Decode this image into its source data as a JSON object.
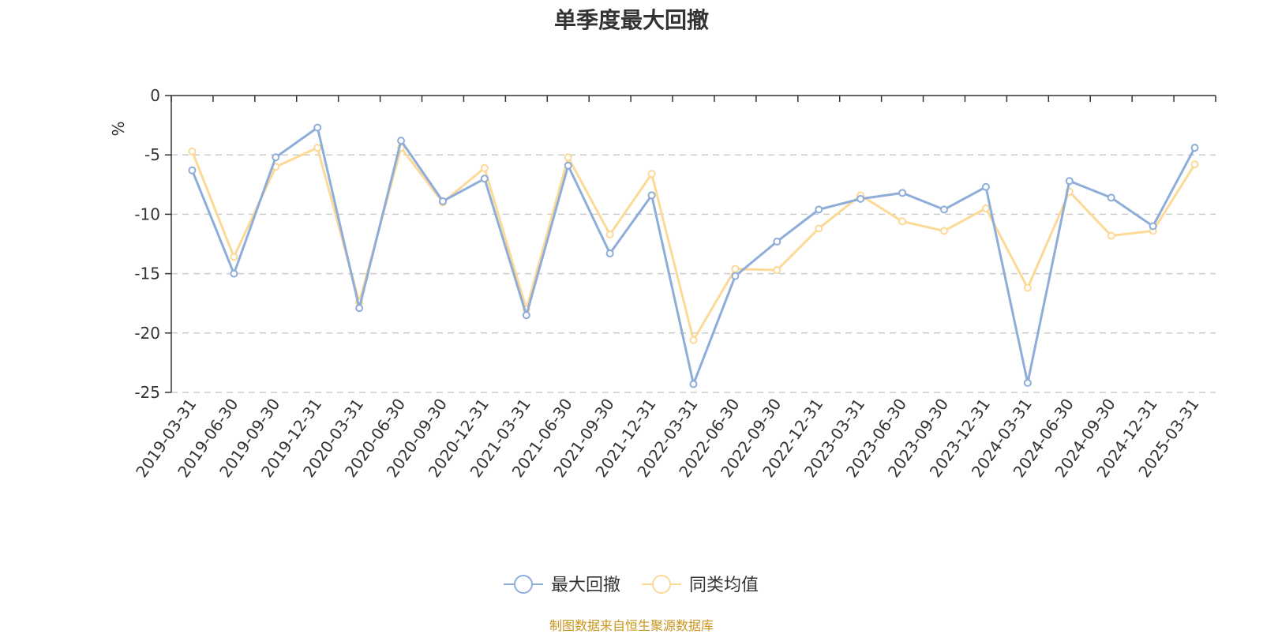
{
  "title": "单季度最大回撤",
  "y_unit": "%",
  "source_text": "制图数据来自恒生聚源数据库",
  "colors": {
    "series_1": "#8eadd9",
    "series_2": "#fcd997",
    "unit": "#ff0000",
    "source": "#c8961e",
    "grid": "#cccccc",
    "axis": "#333333"
  },
  "chart_data": {
    "type": "line",
    "title": "单季度最大回撤",
    "ylabel": "%",
    "xlabel": "",
    "ylim": [
      -25,
      0
    ],
    "yticks": [
      0,
      -5,
      -10,
      -15,
      -20,
      -25
    ],
    "grid": "horizontal-dashed",
    "legend_position": "bottom-center",
    "x": [
      "2019-03-31",
      "2019-06-30",
      "2019-09-30",
      "2019-12-31",
      "2020-03-31",
      "2020-06-30",
      "2020-09-30",
      "2020-12-31",
      "2021-03-31",
      "2021-06-30",
      "2021-09-30",
      "2021-12-31",
      "2022-03-31",
      "2022-06-30",
      "2022-09-30",
      "2022-12-31",
      "2023-03-31",
      "2023-06-30",
      "2023-09-30",
      "2023-12-31",
      "2024-03-31",
      "2024-06-30",
      "2024-09-30",
      "2024-12-31",
      "2025-03-31"
    ],
    "series": [
      {
        "name": "最大回撤",
        "color": "#8eadd9",
        "values": [
          -6.3,
          -15.0,
          -5.2,
          -2.7,
          -17.9,
          -3.8,
          -8.9,
          -7.0,
          -18.5,
          -5.9,
          -13.3,
          -8.4,
          -24.3,
          -15.2,
          -12.3,
          -9.6,
          -8.7,
          -8.2,
          -9.6,
          -7.7,
          -24.2,
          -7.2,
          -8.6,
          -11.0,
          -4.4
        ]
      },
      {
        "name": "同类均值",
        "color": "#fcd997",
        "values": [
          -4.7,
          -13.6,
          -6.0,
          -4.4,
          -17.4,
          -4.4,
          -9.0,
          -6.1,
          -18.0,
          -5.2,
          -11.7,
          -6.6,
          -20.6,
          -14.6,
          -14.7,
          -11.2,
          -8.4,
          -10.6,
          -11.4,
          -9.5,
          -16.2,
          -8.1,
          -11.8,
          -11.4,
          -5.8
        ]
      }
    ]
  }
}
